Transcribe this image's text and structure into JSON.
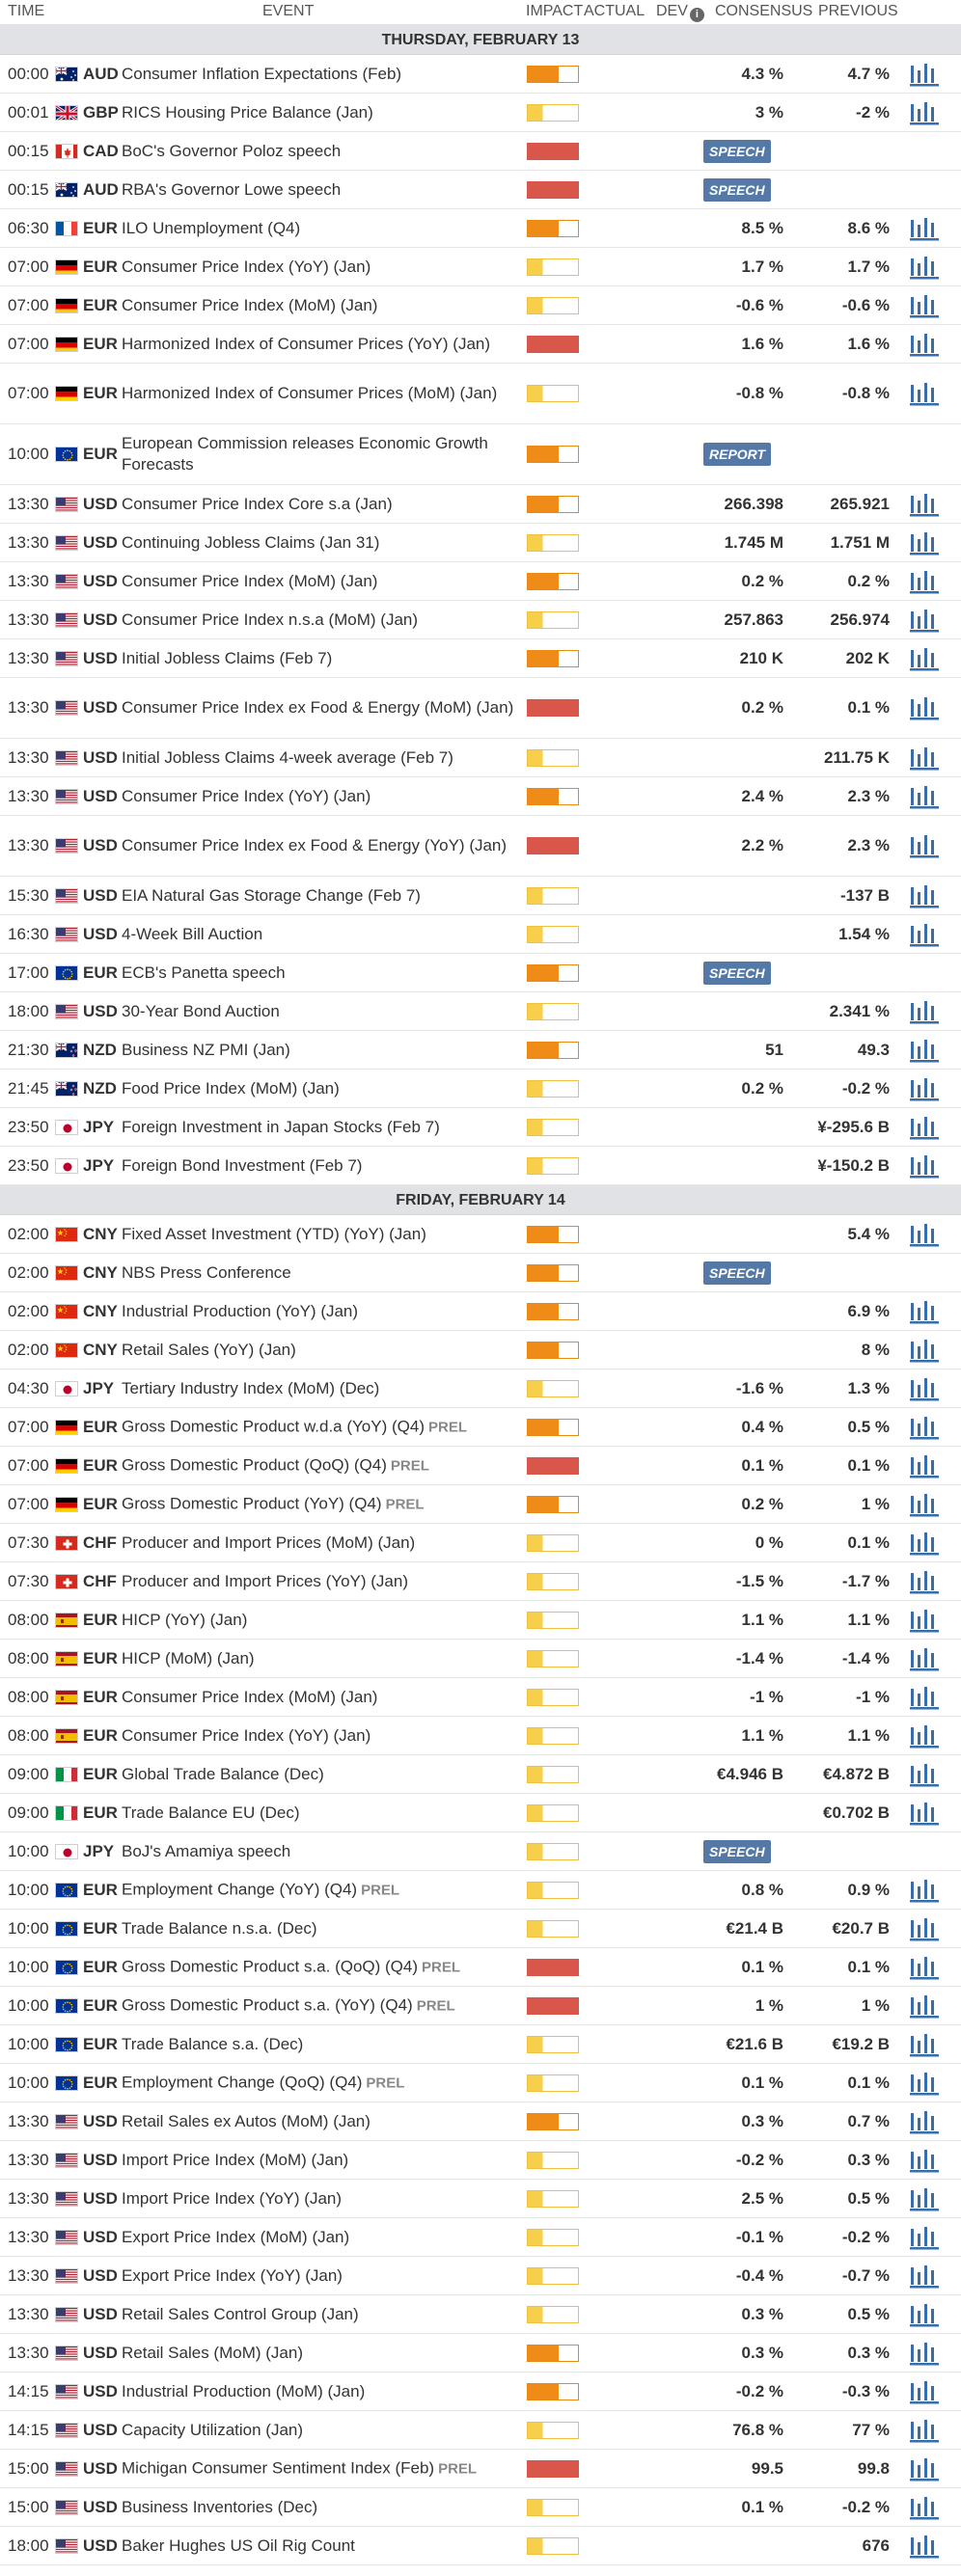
{
  "header": {
    "time": "TIME",
    "event": "EVENT",
    "impact": "IMPACT",
    "actual": "ACTUAL",
    "dev": "DEV",
    "consensus": "CONSENSUS",
    "previous": "PREVIOUS",
    "info_icon": "info-icon"
  },
  "colors": {
    "impact_low": "#f7cf4a",
    "impact_medium": "#ef8c17",
    "impact_high": "#d9564a",
    "badge": "#5479a7",
    "chart_icon": "#3a6da8",
    "day_bg": "#e1e2e5"
  },
  "days": [
    {
      "label": "THURSDAY, FEBRUARY 13",
      "events": [
        {
          "time": "00:00",
          "flag": "au",
          "currency": "AUD",
          "name": "Consumer Inflation Expectations (Feb)",
          "impact": "med",
          "actual": "",
          "consensus": "4.3 %",
          "previous": "4.7 %",
          "chart": true
        },
        {
          "time": "00:01",
          "flag": "gb",
          "currency": "GBP",
          "name": "RICS Housing Price Balance (Jan)",
          "impact": "low",
          "actual": "",
          "consensus": "3 %",
          "previous": "-2 %",
          "chart": true
        },
        {
          "time": "00:15",
          "flag": "ca",
          "currency": "CAD",
          "name": "BoC's Governor Poloz speech",
          "impact": "high",
          "actual": "",
          "consensus": "",
          "previous": "",
          "badge": "SPEECH",
          "chart": false
        },
        {
          "time": "00:15",
          "flag": "au",
          "currency": "AUD",
          "name": "RBA's Governor Lowe speech",
          "impact": "high",
          "actual": "",
          "consensus": "",
          "previous": "",
          "badge": "SPEECH",
          "chart": false
        },
        {
          "time": "06:30",
          "flag": "fr",
          "currency": "EUR",
          "name": "ILO Unemployment (Q4)",
          "impact": "med",
          "actual": "",
          "consensus": "8.5 %",
          "previous": "8.6 %",
          "chart": true
        },
        {
          "time": "07:00",
          "flag": "de",
          "currency": "EUR",
          "name": "Consumer Price Index (YoY) (Jan)",
          "impact": "low",
          "actual": "",
          "consensus": "1.7 %",
          "previous": "1.7 %",
          "chart": true
        },
        {
          "time": "07:00",
          "flag": "de",
          "currency": "EUR",
          "name": "Consumer Price Index (MoM) (Jan)",
          "impact": "low",
          "actual": "",
          "consensus": "-0.6 %",
          "previous": "-0.6 %",
          "chart": true
        },
        {
          "time": "07:00",
          "flag": "de",
          "currency": "EUR",
          "name": "Harmonized Index of Consumer Prices (YoY) (Jan)",
          "impact": "high",
          "actual": "",
          "consensus": "1.6 %",
          "previous": "1.6 %",
          "chart": true
        },
        {
          "time": "07:00",
          "flag": "de",
          "currency": "EUR",
          "name": "Harmonized Index of Consumer Prices (MoM) (Jan)",
          "impact": "low",
          "actual": "",
          "consensus": "-0.8 %",
          "previous": "-0.8 %",
          "chart": true,
          "tall": true
        },
        {
          "time": "10:00",
          "flag": "eu",
          "currency": "EUR",
          "name": "European Commission releases Economic Growth Forecasts",
          "impact": "med",
          "actual": "",
          "consensus": "",
          "previous": "",
          "badge": "REPORT",
          "chart": false,
          "tall": true
        },
        {
          "time": "13:30",
          "flag": "us",
          "currency": "USD",
          "name": "Consumer Price Index Core s.a (Jan)",
          "impact": "med",
          "actual": "",
          "consensus": "266.398",
          "previous": "265.921",
          "chart": true
        },
        {
          "time": "13:30",
          "flag": "us",
          "currency": "USD",
          "name": "Continuing Jobless Claims (Jan 31)",
          "impact": "low",
          "actual": "",
          "consensus": "1.745 M",
          "previous": "1.751 M",
          "chart": true
        },
        {
          "time": "13:30",
          "flag": "us",
          "currency": "USD",
          "name": "Consumer Price Index (MoM) (Jan)",
          "impact": "med",
          "actual": "",
          "consensus": "0.2 %",
          "previous": "0.2 %",
          "chart": true
        },
        {
          "time": "13:30",
          "flag": "us",
          "currency": "USD",
          "name": "Consumer Price Index n.s.a (MoM) (Jan)",
          "impact": "low",
          "actual": "",
          "consensus": "257.863",
          "previous": "256.974",
          "chart": true
        },
        {
          "time": "13:30",
          "flag": "us",
          "currency": "USD",
          "name": "Initial Jobless Claims (Feb 7)",
          "impact": "med",
          "actual": "",
          "consensus": "210 K",
          "previous": "202 K",
          "chart": true
        },
        {
          "time": "13:30",
          "flag": "us",
          "currency": "USD",
          "name": "Consumer Price Index ex Food & Energy (MoM) (Jan)",
          "impact": "high",
          "actual": "",
          "consensus": "0.2 %",
          "previous": "0.1 %",
          "chart": true,
          "tall": true
        },
        {
          "time": "13:30",
          "flag": "us",
          "currency": "USD",
          "name": "Initial Jobless Claims 4-week average (Feb 7)",
          "impact": "low",
          "actual": "",
          "consensus": "",
          "previous": "211.75 K",
          "chart": true
        },
        {
          "time": "13:30",
          "flag": "us",
          "currency": "USD",
          "name": "Consumer Price Index (YoY) (Jan)",
          "impact": "med",
          "actual": "",
          "consensus": "2.4 %",
          "previous": "2.3 %",
          "chart": true
        },
        {
          "time": "13:30",
          "flag": "us",
          "currency": "USD",
          "name": "Consumer Price Index ex Food & Energy (YoY) (Jan)",
          "impact": "high",
          "actual": "",
          "consensus": "2.2 %",
          "previous": "2.3 %",
          "chart": true,
          "tall": true
        },
        {
          "time": "15:30",
          "flag": "us",
          "currency": "USD",
          "name": "EIA Natural Gas Storage Change (Feb 7)",
          "impact": "low",
          "actual": "",
          "consensus": "",
          "previous": "-137 B",
          "chart": true
        },
        {
          "time": "16:30",
          "flag": "us",
          "currency": "USD",
          "name": "4-Week Bill Auction",
          "impact": "low",
          "actual": "",
          "consensus": "",
          "previous": "1.54 %",
          "chart": true
        },
        {
          "time": "17:00",
          "flag": "eu",
          "currency": "EUR",
          "name": "ECB's Panetta speech",
          "impact": "med",
          "actual": "",
          "consensus": "",
          "previous": "",
          "badge": "SPEECH",
          "chart": false
        },
        {
          "time": "18:00",
          "flag": "us",
          "currency": "USD",
          "name": "30-Year Bond Auction",
          "impact": "low",
          "actual": "",
          "consensus": "",
          "previous": "2.341 %",
          "chart": true
        },
        {
          "time": "21:30",
          "flag": "nz",
          "currency": "NZD",
          "name": "Business NZ PMI (Jan)",
          "impact": "med",
          "actual": "",
          "consensus": "51",
          "previous": "49.3",
          "chart": true
        },
        {
          "time": "21:45",
          "flag": "nz",
          "currency": "NZD",
          "name": "Food Price Index (MoM) (Jan)",
          "impact": "low",
          "actual": "",
          "consensus": "0.2 %",
          "previous": "-0.2 %",
          "chart": true
        },
        {
          "time": "23:50",
          "flag": "jp",
          "currency": "JPY",
          "name": "Foreign Investment in Japan Stocks (Feb 7)",
          "impact": "low",
          "actual": "",
          "consensus": "",
          "previous": "¥-295.6 B",
          "chart": true
        },
        {
          "time": "23:50",
          "flag": "jp",
          "currency": "JPY",
          "name": "Foreign Bond Investment (Feb 7)",
          "impact": "low",
          "actual": "",
          "consensus": "",
          "previous": "¥-150.2 B",
          "chart": true
        }
      ]
    },
    {
      "label": "FRIDAY, FEBRUARY 14",
      "events": [
        {
          "time": "02:00",
          "flag": "cn",
          "currency": "CNY",
          "name": "Fixed Asset Investment (YTD) (YoY) (Jan)",
          "impact": "med",
          "actual": "",
          "consensus": "",
          "previous": "5.4 %",
          "chart": true
        },
        {
          "time": "02:00",
          "flag": "cn",
          "currency": "CNY",
          "name": "NBS Press Conference",
          "impact": "med",
          "actual": "",
          "consensus": "",
          "previous": "",
          "badge": "SPEECH",
          "chart": false
        },
        {
          "time": "02:00",
          "flag": "cn",
          "currency": "CNY",
          "name": "Industrial Production (YoY) (Jan)",
          "impact": "med",
          "actual": "",
          "consensus": "",
          "previous": "6.9 %",
          "chart": true
        },
        {
          "time": "02:00",
          "flag": "cn",
          "currency": "CNY",
          "name": "Retail Sales (YoY) (Jan)",
          "impact": "med",
          "actual": "",
          "consensus": "",
          "previous": "8 %",
          "chart": true
        },
        {
          "time": "04:30",
          "flag": "jp",
          "currency": "JPY",
          "name": "Tertiary Industry Index (MoM) (Dec)",
          "impact": "low",
          "actual": "",
          "consensus": "-1.6 %",
          "previous": "1.3 %",
          "chart": true
        },
        {
          "time": "07:00",
          "flag": "de",
          "currency": "EUR",
          "name": "Gross Domestic Product w.d.a (YoY) (Q4)",
          "prel": "PREL",
          "impact": "med",
          "actual": "",
          "consensus": "0.4 %",
          "previous": "0.5 %",
          "chart": true
        },
        {
          "time": "07:00",
          "flag": "de",
          "currency": "EUR",
          "name": "Gross Domestic Product (QoQ) (Q4)",
          "prel": "PREL",
          "impact": "high",
          "actual": "",
          "consensus": "0.1 %",
          "previous": "0.1 %",
          "chart": true
        },
        {
          "time": "07:00",
          "flag": "de",
          "currency": "EUR",
          "name": "Gross Domestic Product (YoY) (Q4)",
          "prel": "PREL",
          "impact": "med",
          "actual": "",
          "consensus": "0.2 %",
          "previous": "1 %",
          "chart": true
        },
        {
          "time": "07:30",
          "flag": "ch",
          "currency": "CHF",
          "name": "Producer and Import Prices (MoM) (Jan)",
          "impact": "low",
          "actual": "",
          "consensus": "0 %",
          "previous": "0.1 %",
          "chart": true
        },
        {
          "time": "07:30",
          "flag": "ch",
          "currency": "CHF",
          "name": "Producer and Import Prices (YoY) (Jan)",
          "impact": "low",
          "actual": "",
          "consensus": "-1.5 %",
          "previous": "-1.7 %",
          "chart": true
        },
        {
          "time": "08:00",
          "flag": "es",
          "currency": "EUR",
          "name": "HICP (YoY) (Jan)",
          "impact": "low",
          "actual": "",
          "consensus": "1.1 %",
          "previous": "1.1 %",
          "chart": true
        },
        {
          "time": "08:00",
          "flag": "es",
          "currency": "EUR",
          "name": "HICP (MoM) (Jan)",
          "impact": "low",
          "actual": "",
          "consensus": "-1.4 %",
          "previous": "-1.4 %",
          "chart": true
        },
        {
          "time": "08:00",
          "flag": "es",
          "currency": "EUR",
          "name": "Consumer Price Index (MoM) (Jan)",
          "impact": "low",
          "actual": "",
          "consensus": "-1 %",
          "previous": "-1 %",
          "chart": true
        },
        {
          "time": "08:00",
          "flag": "es",
          "currency": "EUR",
          "name": "Consumer Price Index (YoY) (Jan)",
          "impact": "low",
          "actual": "",
          "consensus": "1.1 %",
          "previous": "1.1 %",
          "chart": true
        },
        {
          "time": "09:00",
          "flag": "it",
          "currency": "EUR",
          "name": "Global Trade Balance (Dec)",
          "impact": "low",
          "actual": "",
          "consensus": "€4.946 B",
          "previous": "€4.872 B",
          "chart": true
        },
        {
          "time": "09:00",
          "flag": "it",
          "currency": "EUR",
          "name": "Trade Balance EU (Dec)",
          "impact": "low",
          "actual": "",
          "consensus": "",
          "previous": "€0.702 B",
          "chart": true
        },
        {
          "time": "10:00",
          "flag": "jp",
          "currency": "JPY",
          "name": "BoJ's Amamiya speech",
          "impact": "low",
          "actual": "",
          "consensus": "",
          "previous": "",
          "badge": "SPEECH",
          "chart": false
        },
        {
          "time": "10:00",
          "flag": "eu",
          "currency": "EUR",
          "name": "Employment Change (YoY) (Q4)",
          "prel": "PREL",
          "impact": "low",
          "actual": "",
          "consensus": "0.8 %",
          "previous": "0.9 %",
          "chart": true
        },
        {
          "time": "10:00",
          "flag": "eu",
          "currency": "EUR",
          "name": "Trade Balance n.s.a. (Dec)",
          "impact": "low",
          "actual": "",
          "consensus": "€21.4 B",
          "previous": "€20.7 B",
          "chart": true
        },
        {
          "time": "10:00",
          "flag": "eu",
          "currency": "EUR",
          "name": "Gross Domestic Product s.a. (QoQ) (Q4)",
          "prel": "PREL",
          "impact": "high",
          "actual": "",
          "consensus": "0.1 %",
          "previous": "0.1 %",
          "chart": true
        },
        {
          "time": "10:00",
          "flag": "eu",
          "currency": "EUR",
          "name": "Gross Domestic Product s.a. (YoY) (Q4)",
          "prel": "PREL",
          "impact": "high",
          "actual": "",
          "consensus": "1 %",
          "previous": "1 %",
          "chart": true
        },
        {
          "time": "10:00",
          "flag": "eu",
          "currency": "EUR",
          "name": "Trade Balance s.a. (Dec)",
          "impact": "low",
          "actual": "",
          "consensus": "€21.6 B",
          "previous": "€19.2 B",
          "chart": true
        },
        {
          "time": "10:00",
          "flag": "eu",
          "currency": "EUR",
          "name": "Employment Change (QoQ) (Q4)",
          "prel": "PREL",
          "impact": "low",
          "actual": "",
          "consensus": "0.1 %",
          "previous": "0.1 %",
          "chart": true
        },
        {
          "time": "13:30",
          "flag": "us",
          "currency": "USD",
          "name": "Retail Sales ex Autos (MoM) (Jan)",
          "impact": "med",
          "actual": "",
          "consensus": "0.3 %",
          "previous": "0.7 %",
          "chart": true
        },
        {
          "time": "13:30",
          "flag": "us",
          "currency": "USD",
          "name": "Import Price Index (MoM) (Jan)",
          "impact": "low",
          "actual": "",
          "consensus": "-0.2 %",
          "previous": "0.3 %",
          "chart": true
        },
        {
          "time": "13:30",
          "flag": "us",
          "currency": "USD",
          "name": "Import Price Index (YoY) (Jan)",
          "impact": "low",
          "actual": "",
          "consensus": "2.5 %",
          "previous": "0.5 %",
          "chart": true
        },
        {
          "time": "13:30",
          "flag": "us",
          "currency": "USD",
          "name": "Export Price Index (MoM) (Jan)",
          "impact": "low",
          "actual": "",
          "consensus": "-0.1 %",
          "previous": "-0.2 %",
          "chart": true
        },
        {
          "time": "13:30",
          "flag": "us",
          "currency": "USD",
          "name": "Export Price Index (YoY) (Jan)",
          "impact": "low",
          "actual": "",
          "consensus": "-0.4 %",
          "previous": "-0.7 %",
          "chart": true
        },
        {
          "time": "13:30",
          "flag": "us",
          "currency": "USD",
          "name": "Retail Sales Control Group (Jan)",
          "impact": "low",
          "actual": "",
          "consensus": "0.3 %",
          "previous": "0.5 %",
          "chart": true
        },
        {
          "time": "13:30",
          "flag": "us",
          "currency": "USD",
          "name": "Retail Sales (MoM) (Jan)",
          "impact": "med",
          "actual": "",
          "consensus": "0.3 %",
          "previous": "0.3 %",
          "chart": true
        },
        {
          "time": "14:15",
          "flag": "us",
          "currency": "USD",
          "name": "Industrial Production (MoM) (Jan)",
          "impact": "med",
          "actual": "",
          "consensus": "-0.2 %",
          "previous": "-0.3 %",
          "chart": true
        },
        {
          "time": "14:15",
          "flag": "us",
          "currency": "USD",
          "name": "Capacity Utilization (Jan)",
          "impact": "low",
          "actual": "",
          "consensus": "76.8 %",
          "previous": "77 %",
          "chart": true
        },
        {
          "time": "15:00",
          "flag": "us",
          "currency": "USD",
          "name": "Michigan Consumer Sentiment Index (Feb)",
          "prel": "PREL",
          "impact": "high",
          "actual": "",
          "consensus": "99.5",
          "previous": "99.8",
          "chart": true
        },
        {
          "time": "15:00",
          "flag": "us",
          "currency": "USD",
          "name": "Business Inventories (Dec)",
          "impact": "low",
          "actual": "",
          "consensus": "0.1 %",
          "previous": "-0.2 %",
          "chart": true
        },
        {
          "time": "18:00",
          "flag": "us",
          "currency": "USD",
          "name": "Baker Hughes US Oil Rig Count",
          "impact": "low",
          "actual": "",
          "consensus": "",
          "previous": "676",
          "chart": true
        }
      ]
    }
  ]
}
